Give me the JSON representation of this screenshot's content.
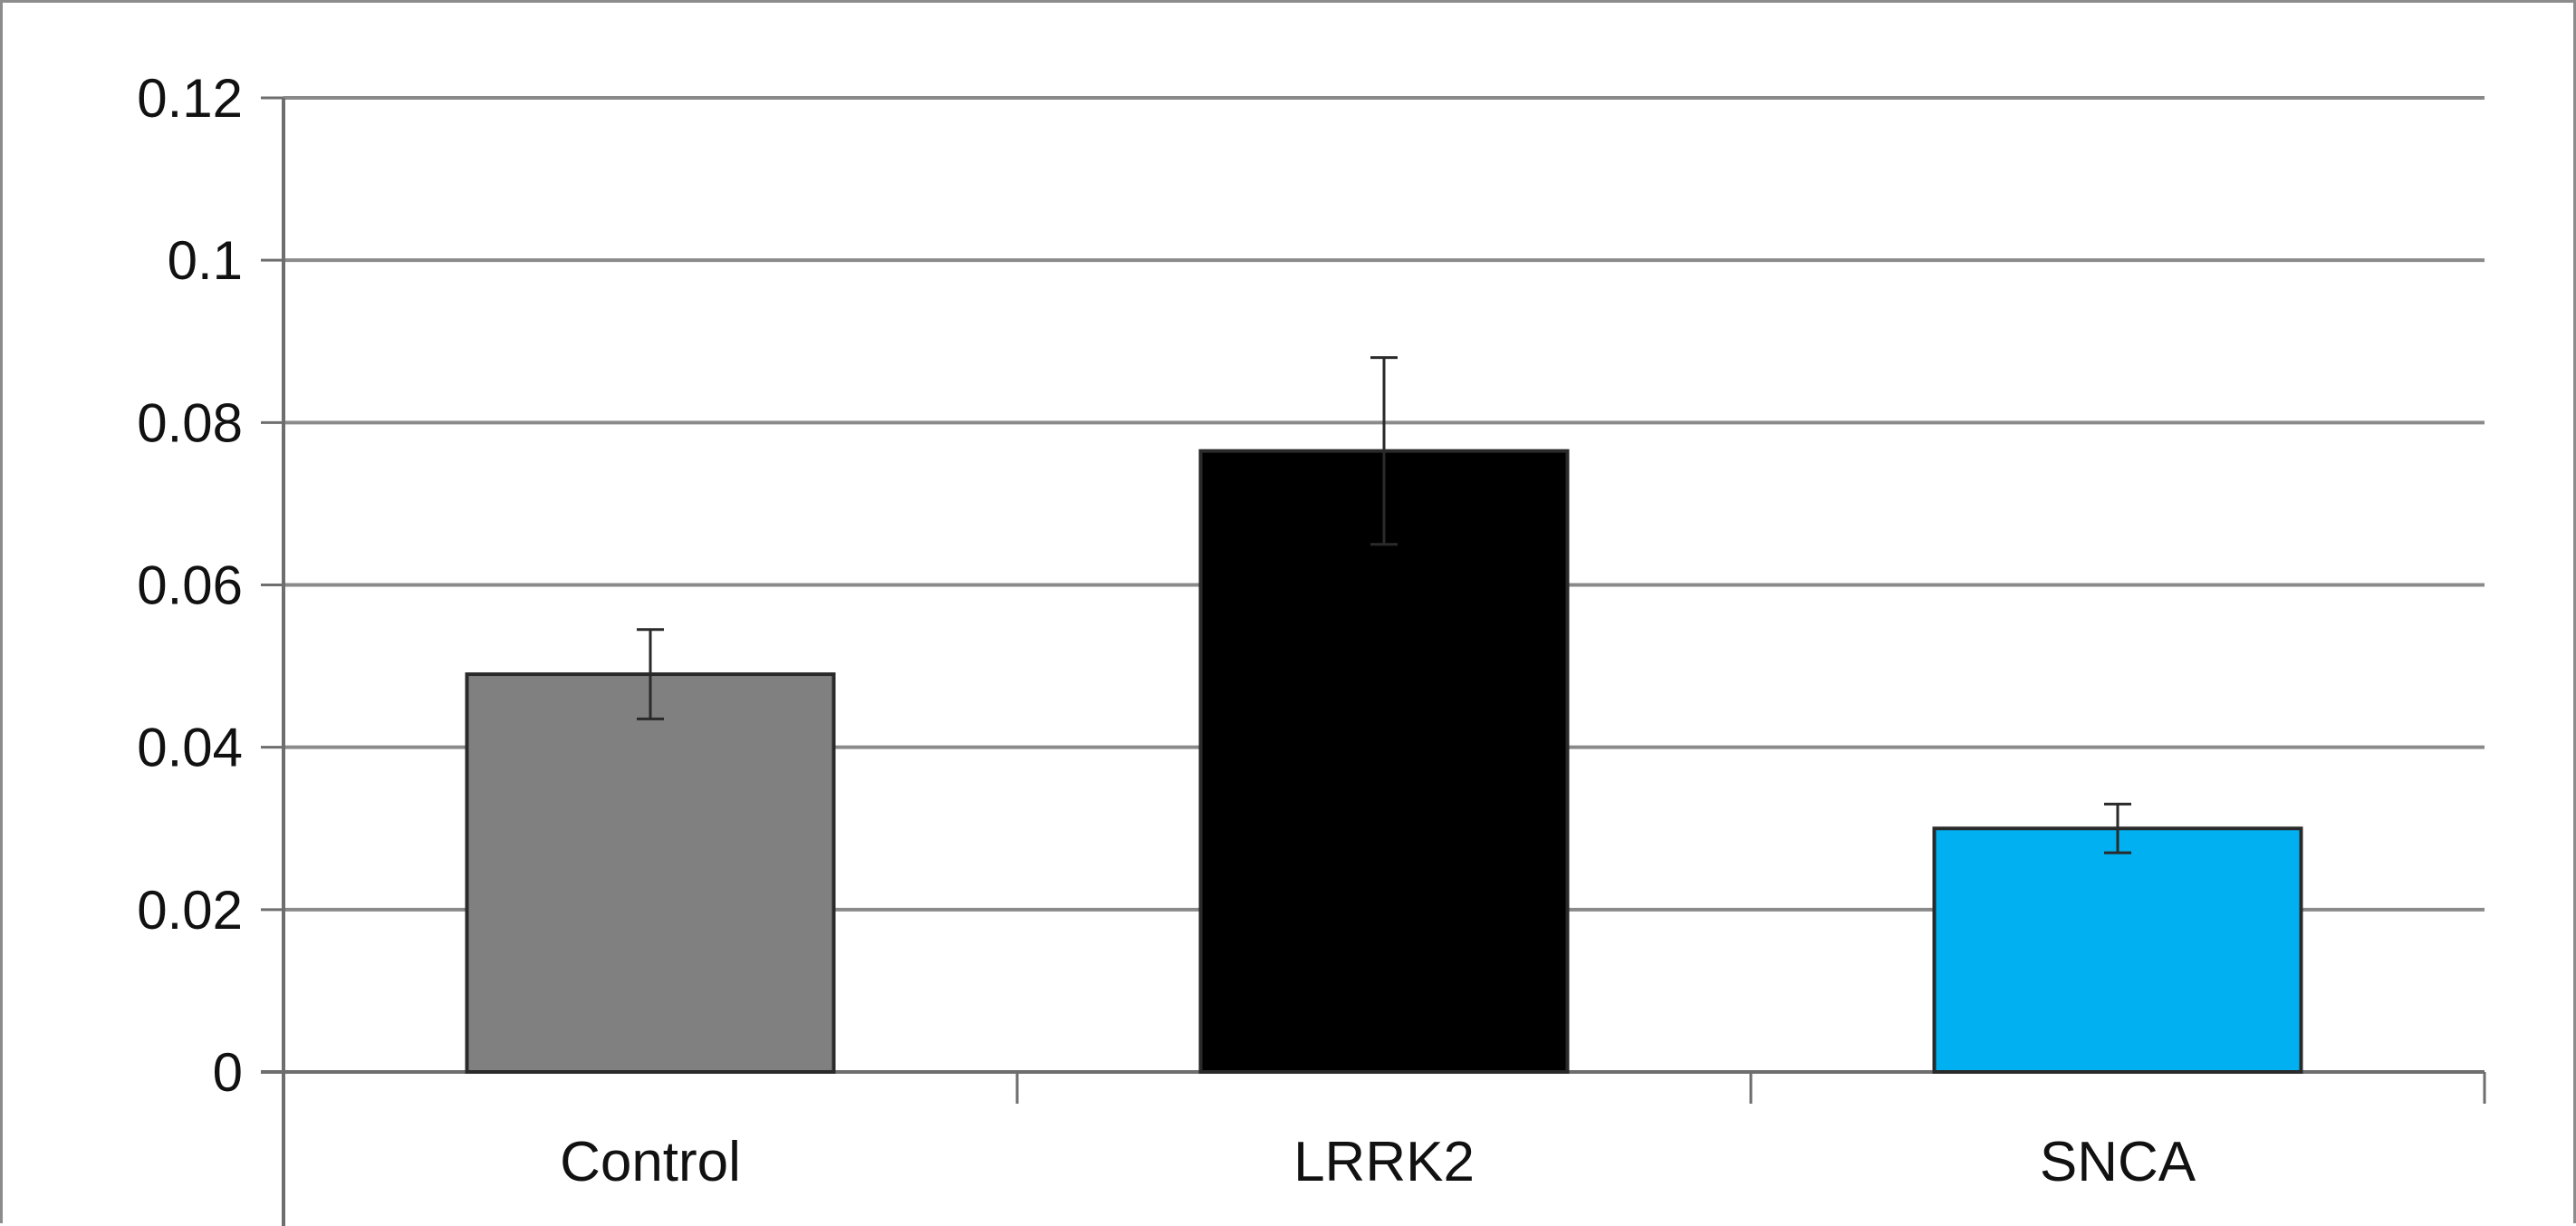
{
  "chart_data": {
    "type": "bar",
    "title": "",
    "xlabel": "",
    "ylabel": "",
    "categories": [
      "Control",
      "LRRK2",
      "SNCA"
    ],
    "values": [
      0.049,
      0.0765,
      0.03
    ],
    "error": [
      0.0055,
      0.0115,
      0.003
    ],
    "colors": [
      "#808080",
      "#000000",
      "#00b0f0"
    ],
    "ylim": [
      0,
      0.12
    ],
    "yticks": [
      0,
      0.02,
      0.04,
      0.06,
      0.08,
      0.1,
      0.12
    ],
    "ytick_labels": [
      "0",
      "0.02",
      "0.04",
      "0.06",
      "0.08",
      "0.1",
      "0.12"
    ],
    "grid": true,
    "legend": "none"
  }
}
